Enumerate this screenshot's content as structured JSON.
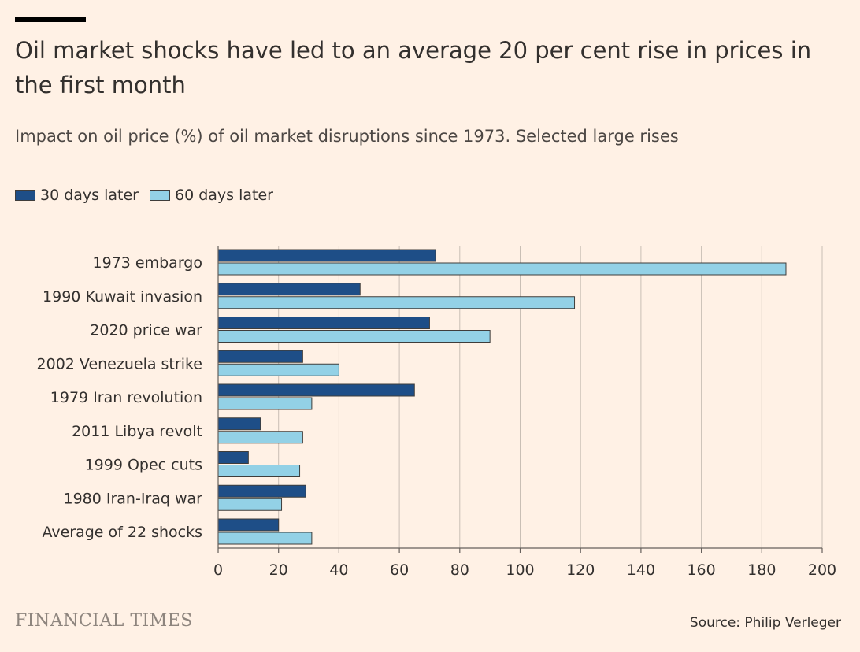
{
  "title": "Oil market shocks have led to an average 20 per cent rise in prices in the first month",
  "subtitle": "Impact on oil price (%) of oil market disruptions since 1973. Selected large rises",
  "legend": {
    "series_0": "30 days later",
    "series_1": "60 days later"
  },
  "brand": "FINANCIAL TIMES",
  "source": "Source: Philip Verleger",
  "colors": {
    "series_0": "#1E4E87",
    "series_1": "#93D1E6",
    "background": "#FFF1E5",
    "grid": "#C9BFB5"
  },
  "chart_data": {
    "type": "bar",
    "orientation": "horizontal",
    "categories": [
      "1973 embargo",
      "1990 Kuwait invasion",
      "2020 price war",
      "2002 Venezuela strike",
      "1979 Iran revolution",
      "2011 Libya revolt",
      "1999 Opec cuts",
      "1980 Iran-Iraq war",
      "Average of 22 shocks"
    ],
    "series": [
      {
        "name": "30 days later",
        "values": [
          72,
          47,
          70,
          28,
          65,
          14,
          10,
          29,
          20
        ]
      },
      {
        "name": "60 days later",
        "values": [
          188,
          118,
          90,
          40,
          31,
          28,
          27,
          21,
          31
        ]
      }
    ],
    "xlim": [
      0,
      200
    ],
    "xticks": [
      0,
      20,
      40,
      60,
      80,
      100,
      120,
      140,
      160,
      180,
      200
    ],
    "grid": true,
    "legend_position": "top-left"
  }
}
